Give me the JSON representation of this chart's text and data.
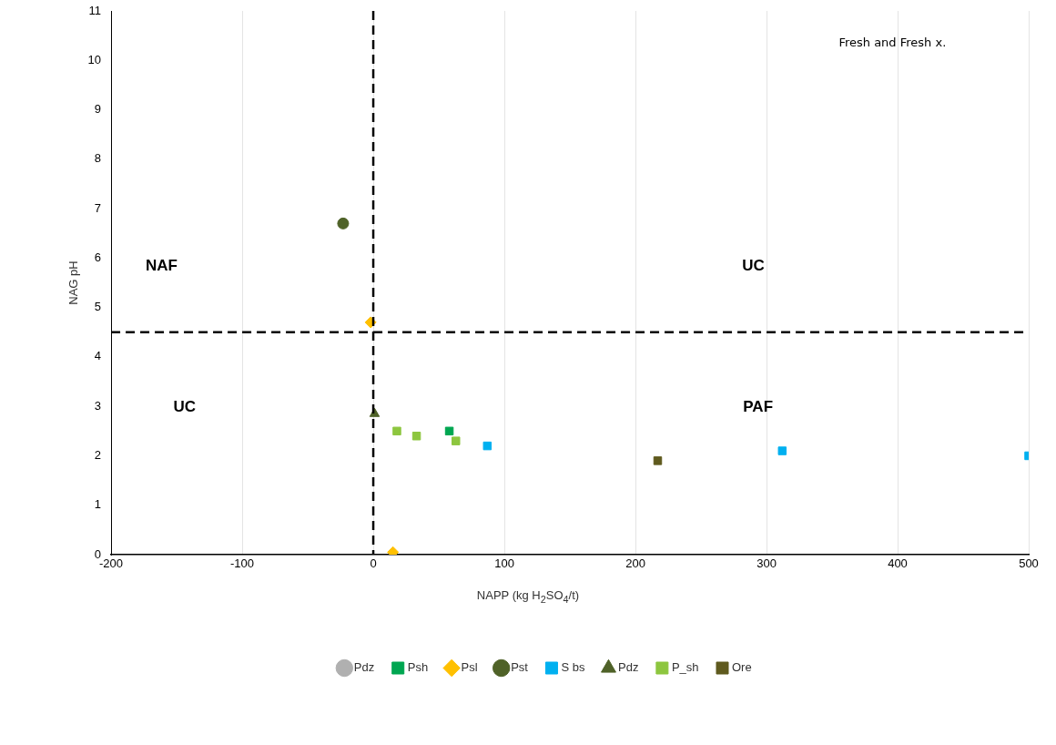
{
  "chart_data": {
    "type": "scatter",
    "xlabel": "NAPP (kg H$_{2}$SO$_{4}$/t)",
    "ylabel": "NAG pH",
    "xlim": [
      -200,
      500
    ],
    "xticks": [
      -200,
      -100,
      0,
      100,
      200,
      300,
      400,
      500
    ],
    "ylim": [
      0,
      11
    ],
    "yticks": [
      0,
      1,
      2,
      3,
      4,
      5,
      6,
      7,
      8,
      9,
      10,
      11
    ],
    "grid": "x",
    "legend": "bottom",
    "ref_lines": [
      {
        "axis": "y",
        "value": 4.5,
        "line_style": "dashed",
        "color": "#000000"
      },
      {
        "axis": "x",
        "value": 0,
        "line_style": "dashed",
        "color": "#000000"
      }
    ],
    "annotations": [
      "Fresh and Fresh x.",
      "NAF",
      "UC",
      "UC",
      "PAF"
    ],
    "series": [
      {
        "name": "Pdz",
        "color": "#b0b0b0",
        "marker": "circle"
      },
      {
        "name": "Psh",
        "color": "#00a651",
        "marker": "square",
        "x": [
          58
        ],
        "values": [
          2.5
        ]
      },
      {
        "name": "Psl",
        "color": "#ffc000",
        "marker": "diamond",
        "x": [
          15,
          -2
        ],
        "values": [
          0.05,
          4.7
        ]
      },
      {
        "name": "Pst",
        "color": "#4f6228",
        "marker": "circle",
        "x": [
          -23
        ],
        "values": [
          6.7
        ]
      },
      {
        "name": "S bs",
        "color": "#00b0f0",
        "marker": "square",
        "x": [
          87,
          312,
          500
        ],
        "values": [
          2.2,
          2.1,
          2.0
        ]
      },
      {
        "name": "Pdz",
        "color": "#4f6228",
        "marker": "triangle",
        "x": [
          1
        ],
        "values": [
          2.85
        ]
      },
      {
        "name": "P_sh",
        "color": "#8dc63f",
        "marker": "square",
        "x": [
          18,
          33,
          63
        ],
        "values": [
          2.5,
          2.4,
          2.3
        ]
      },
      {
        "name": "Ore",
        "color": "#5f5a1e",
        "marker": "square",
        "x": [
          217
        ],
        "values": [
          1.9
        ]
      }
    ]
  }
}
